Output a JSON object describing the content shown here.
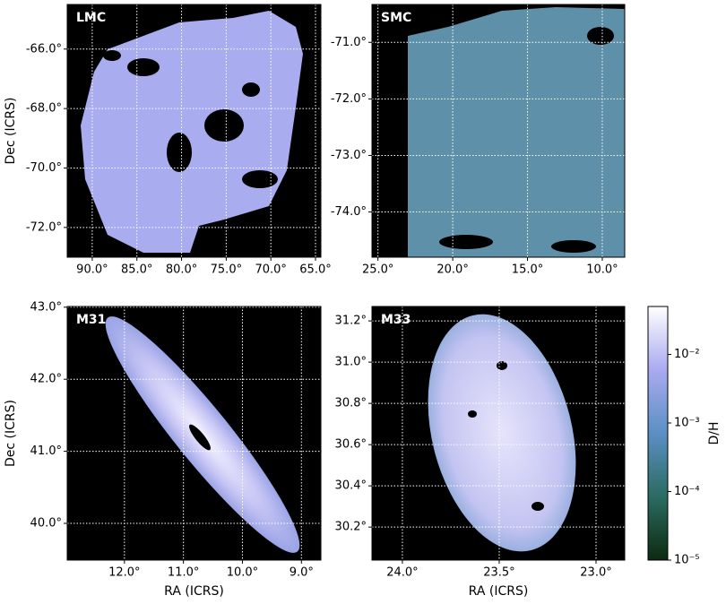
{
  "chart_data": [
    {
      "type": "map",
      "title": "LMC",
      "ylabel": "Dec (ICRS)",
      "grid": true,
      "xlim": [
        92.8,
        64.4
      ],
      "ylim": [
        -73.0,
        -64.5
      ],
      "xticks": [
        {
          "value": 90,
          "label": "90.0°"
        },
        {
          "value": 85,
          "label": "85.0°"
        },
        {
          "value": 80,
          "label": "80.0°"
        },
        {
          "value": 75,
          "label": "75.0°"
        },
        {
          "value": 70,
          "label": "70.0°"
        },
        {
          "value": 65,
          "label": "65.0°"
        }
      ],
      "yticks": [
        {
          "value": -66,
          "label": "-66.0°"
        },
        {
          "value": -68,
          "label": "-68.0°"
        },
        {
          "value": -70,
          "label": "-70.0°"
        },
        {
          "value": -72,
          "label": "-72.0°"
        }
      ]
    },
    {
      "type": "map",
      "title": "SMC",
      "grid": true,
      "xlim": [
        25.4,
        8.5
      ],
      "ylim": [
        -74.8,
        -70.33
      ],
      "xticks": [
        {
          "value": 25,
          "label": "25.0°"
        },
        {
          "value": 20,
          "label": "20.0°"
        },
        {
          "value": 15,
          "label": "15.0°"
        },
        {
          "value": 10,
          "label": "10.0°"
        }
      ],
      "yticks": [
        {
          "value": -71,
          "label": "-71.0°"
        },
        {
          "value": -72,
          "label": "-72.0°"
        },
        {
          "value": -73,
          "label": "-73.0°"
        },
        {
          "value": -74,
          "label": "-74.0°"
        }
      ]
    },
    {
      "type": "map",
      "title": "M31",
      "ylabel": "Dec (ICRS)",
      "xlabel": "RA (ICRS)",
      "grid": true,
      "xlim": [
        12.97,
        8.67
      ],
      "ylim": [
        39.49,
        43.01
      ],
      "xticks": [
        {
          "value": 12,
          "label": "12.0°"
        },
        {
          "value": 11,
          "label": "11.0°"
        },
        {
          "value": 10,
          "label": "10.0°"
        },
        {
          "value": 9,
          "label": "9.0°"
        }
      ],
      "yticks": [
        {
          "value": 43,
          "label": "43.0°"
        },
        {
          "value": 42,
          "label": "42.0°"
        },
        {
          "value": 41,
          "label": "41.0°"
        },
        {
          "value": 40,
          "label": "40.0°"
        }
      ]
    },
    {
      "type": "map",
      "title": "M33",
      "xlabel": "RA (ICRS)",
      "grid": true,
      "xlim": [
        24.157,
        22.852
      ],
      "ylim": [
        30.04,
        31.27
      ],
      "xticks": [
        {
          "value": 24,
          "label": "24.0°"
        },
        {
          "value": 23.5,
          "label": "23.5°"
        },
        {
          "value": 23,
          "label": "23.0°"
        }
      ],
      "yticks": [
        {
          "value": 31.2,
          "label": "31.2°"
        },
        {
          "value": 31,
          "label": "31.0°"
        },
        {
          "value": 30.8,
          "label": "30.8°"
        },
        {
          "value": 30.6,
          "label": "30.6°"
        },
        {
          "value": 30.4,
          "label": "30.4°"
        },
        {
          "value": 30.2,
          "label": "30.2°"
        }
      ]
    },
    {
      "type": "colorbar",
      "ylabel": "D/H",
      "log_scale": true,
      "ylim": [
        1e-05,
        0.05
      ],
      "yticks": [
        {
          "value": 1e-05,
          "label": "10⁻⁵"
        },
        {
          "value": 0.0001,
          "label": "10⁻⁴"
        },
        {
          "value": 0.001,
          "label": "10⁻³"
        },
        {
          "value": 0.01,
          "label": "10⁻²"
        }
      ]
    }
  ]
}
